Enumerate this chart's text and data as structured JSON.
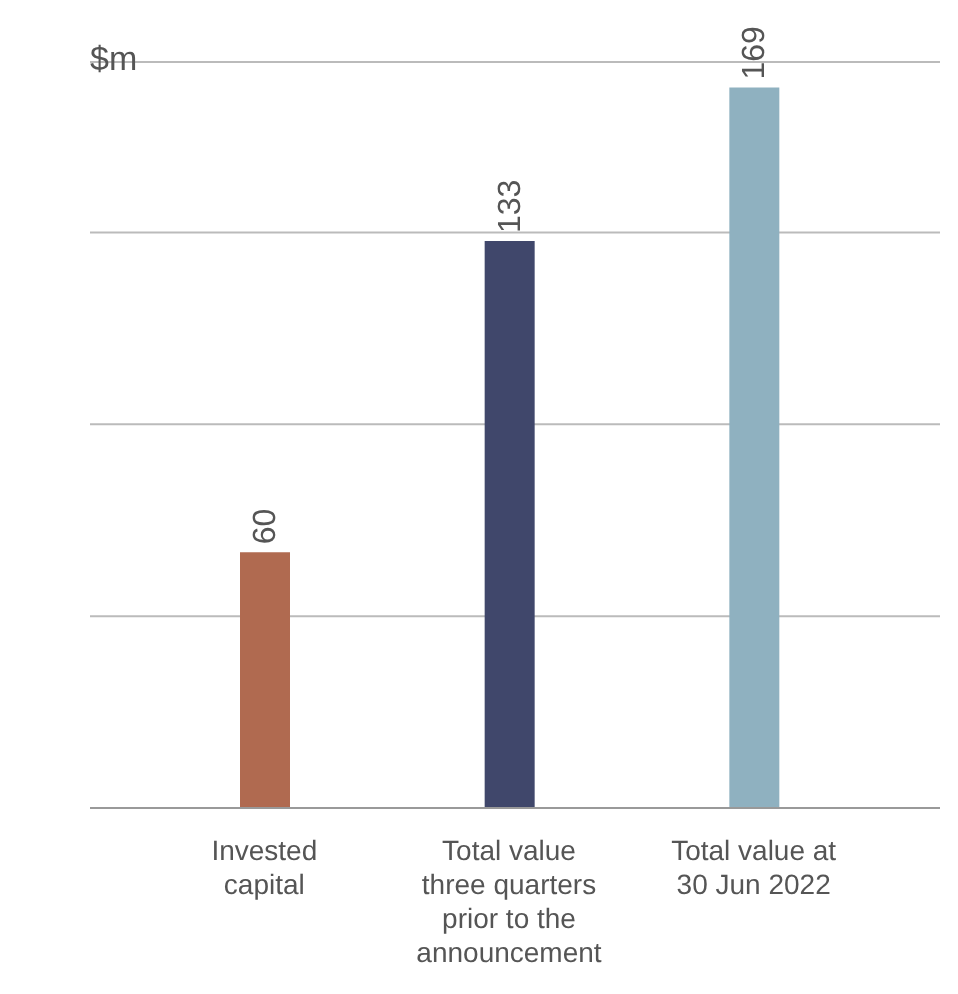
{
  "chart_data": {
    "type": "bar",
    "ylabel": "$m",
    "categories": [
      "Invested capital",
      "Total value three quarters prior to the announcement",
      "Total value at 30 Jun 2022"
    ],
    "values": [
      60,
      133,
      169
    ],
    "colors": [
      "#b06a50",
      "#40476b",
      "#8fb1c0"
    ],
    "ylim": [
      0,
      175
    ],
    "grid": "y",
    "tick_labels": "x",
    "data_labels": true,
    "legend": false
  }
}
